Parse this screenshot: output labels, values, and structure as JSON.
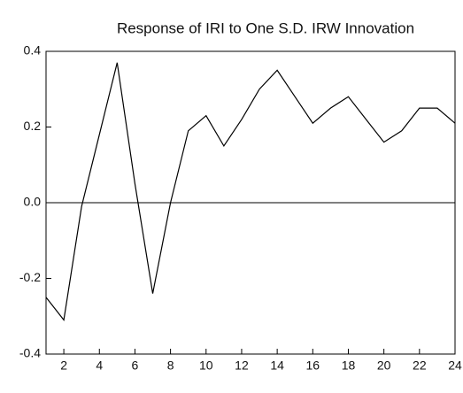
{
  "chart_data": {
    "type": "line",
    "title": "Response of IRI to One S.D. IRW Innovation",
    "x": [
      1,
      2,
      3,
      4,
      5,
      6,
      7,
      8,
      9,
      10,
      11,
      12,
      13,
      14,
      15,
      16,
      17,
      18,
      19,
      20,
      21,
      22,
      23,
      24
    ],
    "series": [
      {
        "name": "IRI",
        "color": "#000000",
        "values": [
          -0.25,
          -0.31,
          -0.01,
          0.18,
          0.37,
          0.05,
          -0.24,
          0.0,
          0.19,
          0.23,
          0.15,
          0.22,
          0.3,
          0.35,
          0.28,
          0.21,
          0.25,
          0.28,
          0.22,
          0.16,
          0.19,
          0.25,
          0.25,
          0.21
        ]
      }
    ],
    "xlim": [
      1,
      24
    ],
    "xticks": [
      2,
      4,
      6,
      8,
      10,
      12,
      14,
      16,
      18,
      20,
      22,
      24
    ],
    "ylim": [
      -0.4,
      0.4
    ],
    "yticks": [
      0.4,
      0.2,
      {
        "value": 0,
        "label": "0.0"
      },
      -0.2,
      -0.4
    ]
  }
}
